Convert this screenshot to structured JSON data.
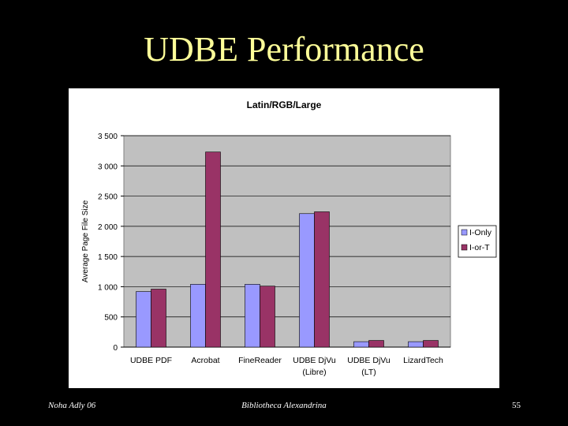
{
  "slide": {
    "title": "UDBE Performance",
    "footer_left": "Noha Adly 06",
    "footer_center": "Bibliotheca Alexandrina",
    "footer_right": "55"
  },
  "colors": {
    "background": "#000000",
    "title": "#ffff99",
    "plot_area": "#c0c0c0",
    "series_1": "#9999ff",
    "series_2": "#993366"
  },
  "chart_data": {
    "type": "bar",
    "title": "Latin/RGB/Large",
    "xlabel": "",
    "ylabel": "Average Page File Size",
    "categories": [
      [
        "UDBE PDF"
      ],
      [
        "Acrobat"
      ],
      [
        "FineReader"
      ],
      [
        "UDBE DjVu",
        "(Libre)"
      ],
      [
        "UDBE DjVu",
        "(LT)"
      ],
      [
        "LizardTech"
      ]
    ],
    "series": [
      {
        "name": "I-Only",
        "values": [
          920,
          1040,
          1040,
          2210,
          90,
          90
        ]
      },
      {
        "name": "I-or-T",
        "values": [
          960,
          3230,
          1010,
          2240,
          110,
          110
        ]
      }
    ],
    "ylim": [
      0,
      3500
    ],
    "yticks": [
      0,
      500,
      1000,
      1500,
      2000,
      2500,
      3000,
      3500
    ],
    "ytick_labels": [
      "0",
      "500",
      "1 000",
      "1 500",
      "2 000",
      "2 500",
      "3 000",
      "3 500"
    ],
    "grid": true,
    "legend_position": "right"
  }
}
